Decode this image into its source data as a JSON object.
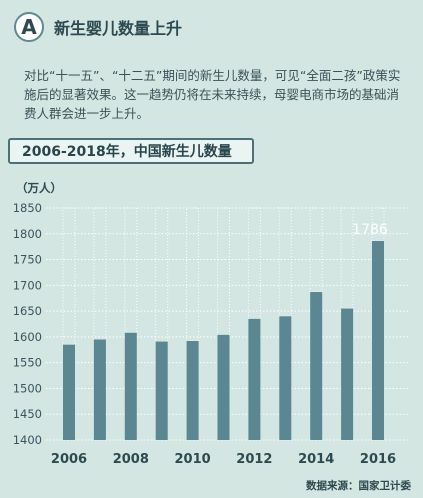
{
  "header": {
    "badge_letter": "A",
    "section_title": "新生婴儿数量上升"
  },
  "intro_text": "对比“十一五”、“十二五”期间的新生儿数量，可见“全面二孩”政策实施后的显著效果。这一趋势仍将在未来持续，母婴电商市场的基础消费人群会进一步上升。",
  "chart_title": "2006-2018年，中国新生儿数量",
  "source": "数据来源：国家卫计委",
  "colors": {
    "bar": "#5a8791",
    "grid": "#ffffff",
    "axis_text": "#3a5560",
    "highlight": "#ffffff"
  },
  "chart_data": {
    "type": "bar",
    "title": "2006-2018年，中国新生儿数量",
    "ylabel": "（万人）",
    "xlabel": "",
    "categories": [
      "2006",
      "2007",
      "2008",
      "2009",
      "2010",
      "2011",
      "2012",
      "2013",
      "2014",
      "2015",
      "2016"
    ],
    "x_tick_labels": [
      "2006",
      "2008",
      "2010",
      "2012",
      "2014",
      "2016"
    ],
    "values": [
      1585,
      1595,
      1608,
      1591,
      1592,
      1604,
      1635,
      1640,
      1687,
      1655,
      1786
    ],
    "ylim": [
      1400,
      1850
    ],
    "yticks": [
      1400,
      1450,
      1500,
      1550,
      1600,
      1650,
      1700,
      1750,
      1800,
      1850
    ],
    "data_labels": [
      {
        "category": "2016",
        "text": "1786"
      }
    ],
    "grid": "dotted",
    "legend": "none"
  }
}
